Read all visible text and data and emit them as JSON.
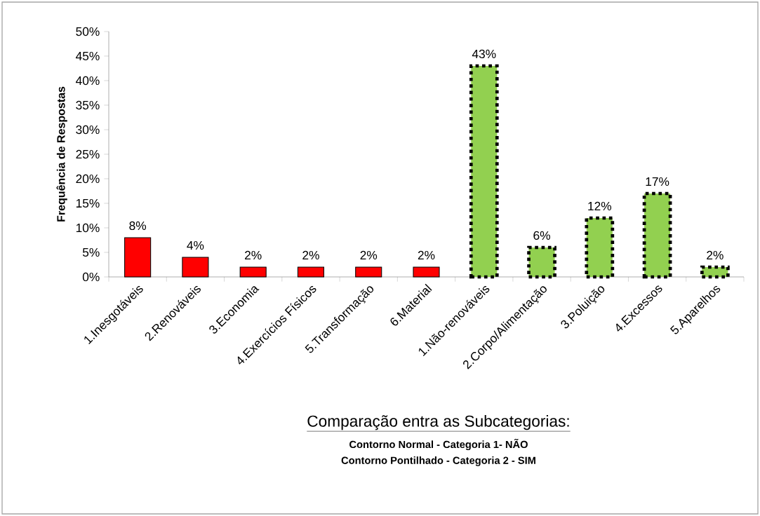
{
  "chart_data": {
    "type": "bar",
    "categories": [
      "1.Inesgotáveis",
      "2.Renováveis",
      "3.Economia",
      "4.Exercícios Físicos",
      "5.Transformação",
      "6.Material",
      "1.Não-renováveis",
      "2.Corpo/Alimentação",
      "3.Poluição",
      "4.Excessos",
      "5.Aparelhos"
    ],
    "series": [
      {
        "color": "#ff0000",
        "line_style": "solid",
        "values": [
          8,
          4,
          2,
          2,
          2,
          2,
          null,
          null,
          null,
          null,
          null
        ],
        "value_labels": [
          "8%",
          "4%",
          "2%",
          "2%",
          "2%",
          "2%",
          null,
          null,
          null,
          null,
          null
        ]
      },
      {
        "color": "#92d050",
        "line_style": "dotted",
        "values": [
          null,
          null,
          null,
          null,
          null,
          null,
          43,
          6,
          12,
          17,
          2
        ],
        "value_labels": [
          null,
          null,
          null,
          null,
          null,
          null,
          "43%",
          "6%",
          "12%",
          "17%",
          "2%"
        ]
      }
    ],
    "ylim": [
      0,
      50
    ],
    "yticks": [
      {
        "value": 0,
        "label": "0%"
      },
      {
        "value": 5,
        "label": "5%"
      },
      {
        "value": 10,
        "label": "10%"
      },
      {
        "value": 15,
        "label": "15%"
      },
      {
        "value": 20,
        "label": "20%"
      },
      {
        "value": 25,
        "label": "25%"
      },
      {
        "value": 30,
        "label": "30%"
      },
      {
        "value": 35,
        "label": "35%"
      },
      {
        "value": 40,
        "label": "40%"
      },
      {
        "value": 45,
        "label": "45%"
      },
      {
        "value": 50,
        "label": "50%"
      }
    ],
    "ylabel": "Frequência de Respostas",
    "xlabel": "Comparação entra as Subcategorias:",
    "annotations": [
      "Contorno Normal - Categoria 1- NÃO",
      "Contorno Pontilhado - Categoria 2 - SIM"
    ]
  }
}
